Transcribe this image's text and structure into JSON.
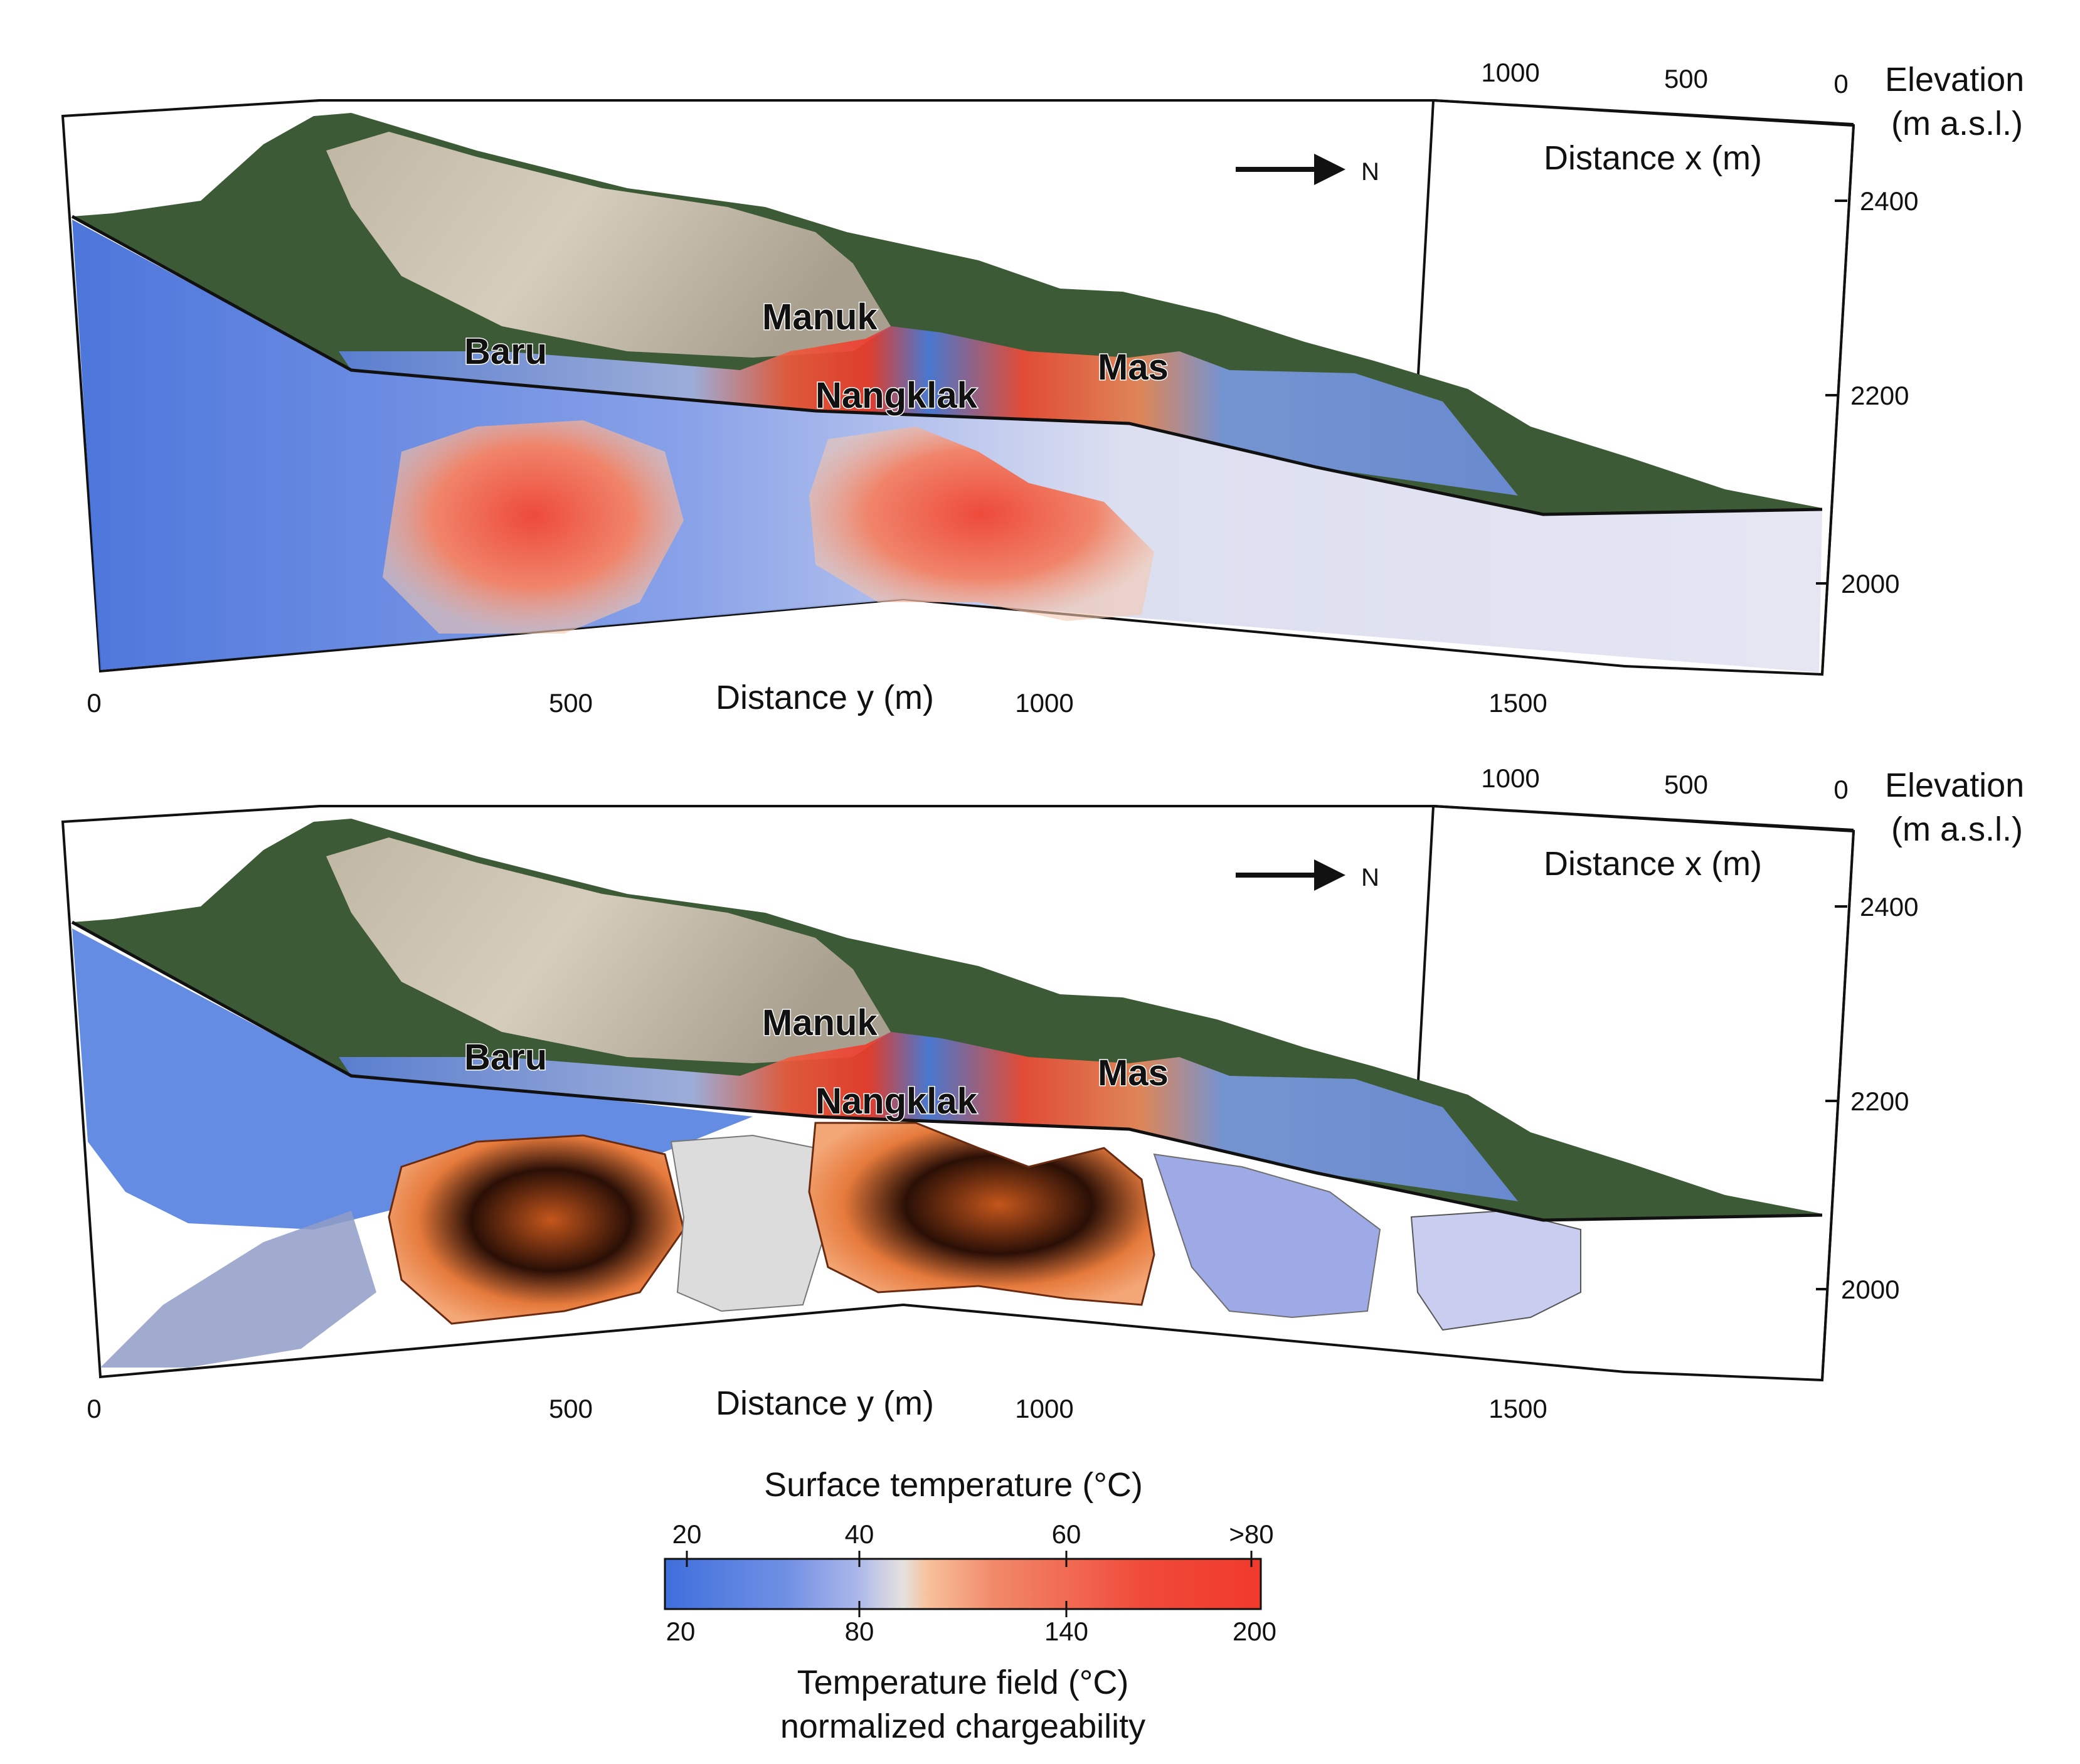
{
  "panels": [
    {
      "id": "top",
      "north_label": "N",
      "x_axis_title": "Distance x (m)",
      "x_ticks": [
        "1000",
        "500",
        "0"
      ],
      "y_axis_title": "Distance y (m)",
      "y_ticks": [
        "0",
        "500",
        "1000",
        "1500"
      ],
      "z_title_line1": "Elevation",
      "z_title_line2": "(m a.s.l.)",
      "z_ticks": [
        "2400",
        "2200",
        "2000"
      ],
      "sites": {
        "manuk": "Manuk",
        "baru": "Baru",
        "nangklak": "Nangklak",
        "mas": "Mas"
      }
    },
    {
      "id": "bottom",
      "north_label": "N",
      "x_axis_title": "Distance x (m)",
      "x_ticks": [
        "1000",
        "500",
        "0"
      ],
      "y_axis_title": "Distance y (m)",
      "y_ticks": [
        "0",
        "500",
        "1000",
        "1500"
      ],
      "z_title_line1": "Elevation",
      "z_title_line2": "(m a.s.l.)",
      "z_ticks": [
        "2400",
        "2200",
        "2000"
      ],
      "sites": {
        "manuk": "Manuk",
        "baru": "Baru",
        "nangklak": "Nangklak",
        "mas": "Mas"
      }
    }
  ],
  "legend": {
    "top_title": "Surface temperature (°C)",
    "top_ticks": [
      "20",
      "40",
      "60",
      ">80"
    ],
    "bottom_ticks": [
      "20",
      "80",
      "140",
      "200"
    ],
    "bottom_title_line1": "Temperature field (°C)",
    "bottom_title_line2": "normalized chargeability"
  },
  "colors": {
    "cold": "#3f6fdc",
    "neutral": "#e8e4e0",
    "hot": "#f03a2c",
    "vegetation": "#3d5a36",
    "bare_rock": "#c9bfae"
  }
}
